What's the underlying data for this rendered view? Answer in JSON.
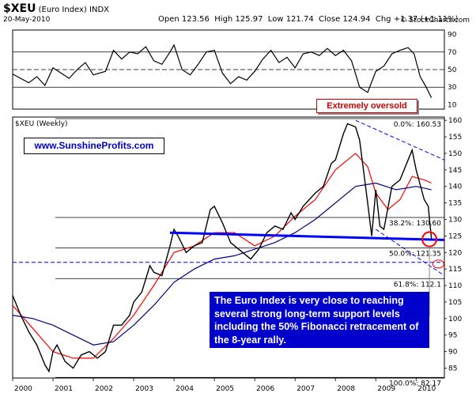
{
  "header": {
    "symbol": "$XEU",
    "name": "(Euro Index) INDX",
    "date": "20-May-2010",
    "open_label": "Open",
    "open": "123.56",
    "high_label": "High",
    "high": "125.97",
    "low_label": "Low",
    "low": "121.74",
    "close_label": "Close",
    "close": "124.94",
    "chg_label": "Chg",
    "chg": "+1.37 (+1.11%)",
    "credit": "© StockCharts.com"
  },
  "chart_data": {
    "type": "line",
    "panel_label": "$XEU (Weekly)",
    "x_tick_labels": [
      "2000",
      "2001",
      "2002",
      "2003",
      "2004",
      "2005",
      "2006",
      "2007",
      "2008",
      "2009",
      "2010"
    ],
    "y_tick_labels": [
      85,
      90,
      95,
      100,
      105,
      110,
      115,
      120,
      125,
      130,
      135,
      140,
      145,
      150,
      155,
      160
    ],
    "ylim": [
      82,
      161
    ],
    "series": [
      {
        "values": [
          [
            2000.0,
            107
          ],
          [
            2000.2,
            101
          ],
          [
            2000.4,
            96
          ],
          [
            2000.6,
            92
          ],
          [
            2000.8,
            86
          ],
          [
            2000.9,
            84
          ],
          [
            2001.0,
            90
          ],
          [
            2001.1,
            92
          ],
          [
            2001.3,
            87
          ],
          [
            2001.5,
            85
          ],
          [
            2001.7,
            89
          ],
          [
            2001.9,
            90
          ],
          [
            2002.1,
            88
          ],
          [
            2002.3,
            90
          ],
          [
            2002.5,
            98
          ],
          [
            2002.7,
            98
          ],
          [
            2002.9,
            101
          ],
          [
            2003.0,
            105
          ],
          [
            2003.2,
            108
          ],
          [
            2003.4,
            116
          ],
          [
            2003.5,
            114
          ],
          [
            2003.7,
            113
          ],
          [
            2003.9,
            122
          ],
          [
            2004.0,
            127
          ],
          [
            2004.1,
            125
          ],
          [
            2004.3,
            120
          ],
          [
            2004.5,
            122
          ],
          [
            2004.7,
            123
          ],
          [
            2004.9,
            133
          ],
          [
            2005.0,
            134
          ],
          [
            2005.2,
            129
          ],
          [
            2005.4,
            123
          ],
          [
            2005.6,
            121
          ],
          [
            2005.8,
            119
          ],
          [
            2005.9,
            118
          ],
          [
            2006.1,
            121
          ],
          [
            2006.3,
            126
          ],
          [
            2006.5,
            128
          ],
          [
            2006.7,
            127
          ],
          [
            2006.9,
            132
          ],
          [
            2007.0,
            130
          ],
          [
            2007.2,
            134
          ],
          [
            2007.5,
            138
          ],
          [
            2007.7,
            140
          ],
          [
            2007.9,
            147
          ],
          [
            2008.0,
            148
          ],
          [
            2008.2,
            156
          ],
          [
            2008.3,
            159
          ],
          [
            2008.5,
            158
          ],
          [
            2008.6,
            154
          ],
          [
            2008.8,
            135
          ],
          [
            2008.9,
            125
          ],
          [
            2009.0,
            139
          ],
          [
            2009.1,
            128
          ],
          [
            2009.2,
            127
          ],
          [
            2009.4,
            140
          ],
          [
            2009.6,
            142
          ],
          [
            2009.8,
            148
          ],
          [
            2009.9,
            151
          ],
          [
            2010.0,
            145
          ],
          [
            2010.2,
            136
          ],
          [
            2010.3,
            134
          ],
          [
            2010.38,
            124
          ]
        ]
      },
      {
        "values": [
          [
            2000.0,
            101
          ],
          [
            2000.5,
            100
          ],
          [
            2001.0,
            98
          ],
          [
            2001.5,
            95
          ],
          [
            2002.0,
            92
          ],
          [
            2002.5,
            93
          ],
          [
            2003.0,
            98
          ],
          [
            2003.5,
            104
          ],
          [
            2004.0,
            111
          ],
          [
            2004.5,
            115
          ],
          [
            2005.0,
            118
          ],
          [
            2005.5,
            119
          ],
          [
            2006.0,
            121
          ],
          [
            2006.5,
            123
          ],
          [
            2007.0,
            126
          ],
          [
            2007.5,
            130
          ],
          [
            2008.0,
            135
          ],
          [
            2008.5,
            140
          ],
          [
            2009.0,
            141
          ],
          [
            2009.5,
            139
          ],
          [
            2010.0,
            140
          ],
          [
            2010.38,
            139
          ]
        ]
      },
      {
        "values": [
          [
            2000.0,
            104
          ],
          [
            2000.5,
            97
          ],
          [
            2001.0,
            90
          ],
          [
            2001.5,
            88
          ],
          [
            2002.0,
            88
          ],
          [
            2002.5,
            94
          ],
          [
            2003.0,
            101
          ],
          [
            2003.5,
            110
          ],
          [
            2004.0,
            120
          ],
          [
            2004.5,
            122
          ],
          [
            2005.0,
            126
          ],
          [
            2005.5,
            126
          ],
          [
            2006.0,
            122
          ],
          [
            2006.5,
            125
          ],
          [
            2007.0,
            131
          ],
          [
            2007.5,
            136
          ],
          [
            2008.0,
            145
          ],
          [
            2008.5,
            150
          ],
          [
            2008.8,
            146
          ],
          [
            2009.0,
            138
          ],
          [
            2009.3,
            133
          ],
          [
            2009.6,
            136
          ],
          [
            2009.9,
            143
          ],
          [
            2010.2,
            142
          ],
          [
            2010.38,
            141
          ]
        ]
      }
    ],
    "fibonacci_levels": [
      {
        "label": "0.0%: 160.53",
        "value": 160.53
      },
      {
        "label": "38.2%: 130.60",
        "value": 130.6
      },
      {
        "label": "50.0%: 121.35",
        "value": 121.35
      },
      {
        "label": "61.8%: 112.1",
        "value": 112.1
      },
      {
        "label": "100.0%: 82.17",
        "value": 82.17
      }
    ],
    "trend_lines": [
      {
        "from": [
          2003.9,
          126
        ],
        "to": [
          2010.7,
          123.8
        ],
        "color": "#0000ff",
        "style": "solid-thick"
      },
      {
        "from": [
          2008.5,
          160
        ],
        "to": [
          2010.7,
          148
        ],
        "color": "#0000ff",
        "style": "dashed"
      },
      {
        "from": [
          2009.0,
          127
        ],
        "to": [
          2010.7,
          113
        ],
        "color": "#0000ff",
        "style": "dashed"
      },
      {
        "from": [
          2000.0,
          117
        ],
        "to": [
          2010.7,
          117
        ],
        "color": "#0000ff",
        "style": "dashed"
      }
    ],
    "rsi": {
      "y_tick_labels": [
        10,
        30,
        50,
        70,
        90
      ],
      "ylim": [
        5,
        95
      ],
      "levels": [
        30,
        50,
        70
      ],
      "values": [
        [
          2000.0,
          45
        ],
        [
          2000.2,
          40
        ],
        [
          2000.4,
          35
        ],
        [
          2000.6,
          42
        ],
        [
          2000.8,
          32
        ],
        [
          2001.0,
          52
        ],
        [
          2001.2,
          46
        ],
        [
          2001.4,
          40
        ],
        [
          2001.6,
          50
        ],
        [
          2001.8,
          58
        ],
        [
          2002.0,
          44
        ],
        [
          2002.3,
          48
        ],
        [
          2002.5,
          72
        ],
        [
          2002.7,
          62
        ],
        [
          2002.9,
          70
        ],
        [
          2003.1,
          68
        ],
        [
          2003.3,
          76
        ],
        [
          2003.5,
          60
        ],
        [
          2003.7,
          56
        ],
        [
          2003.9,
          70
        ],
        [
          2004.0,
          78
        ],
        [
          2004.2,
          50
        ],
        [
          2004.4,
          44
        ],
        [
          2004.6,
          56
        ],
        [
          2004.8,
          70
        ],
        [
          2005.0,
          72
        ],
        [
          2005.2,
          46
        ],
        [
          2005.4,
          34
        ],
        [
          2005.6,
          42
        ],
        [
          2005.8,
          38
        ],
        [
          2006.0,
          48
        ],
        [
          2006.2,
          62
        ],
        [
          2006.4,
          72
        ],
        [
          2006.6,
          58
        ],
        [
          2006.8,
          64
        ],
        [
          2007.0,
          52
        ],
        [
          2007.2,
          68
        ],
        [
          2007.4,
          70
        ],
        [
          2007.6,
          66
        ],
        [
          2007.8,
          74
        ],
        [
          2008.0,
          66
        ],
        [
          2008.2,
          72
        ],
        [
          2008.4,
          60
        ],
        [
          2008.6,
          30
        ],
        [
          2008.8,
          24
        ],
        [
          2009.0,
          48
        ],
        [
          2009.2,
          54
        ],
        [
          2009.4,
          68
        ],
        [
          2009.6,
          72
        ],
        [
          2009.8,
          75
        ],
        [
          2009.95,
          68
        ],
        [
          2010.1,
          42
        ],
        [
          2010.25,
          30
        ],
        [
          2010.38,
          18
        ]
      ]
    }
  },
  "annotations": {
    "site": "www.SunshineProfits.com",
    "oversold": "Extremely oversold",
    "note": "The Euro Index is very close to reaching several strong long-term support levels including the 50% Fibonacci retracement of the 8-year rally."
  },
  "colors": {
    "price": "#000000",
    "ma_fast": "#000080",
    "ma_slow": "#ff0000",
    "annotation_bg": "#0000cc",
    "oversold": "#cc0000"
  }
}
